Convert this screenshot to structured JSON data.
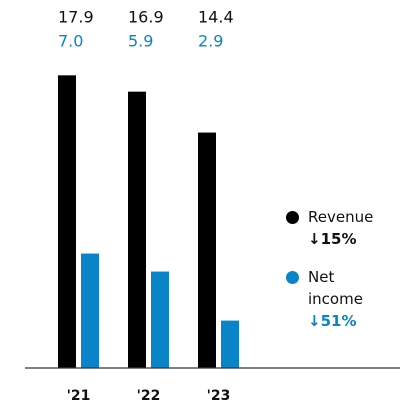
{
  "chart_data": {
    "type": "bar",
    "categories": [
      "'21",
      "'22",
      "'23"
    ],
    "series": [
      {
        "name": "Revenue",
        "color": "#000000",
        "values": [
          17.9,
          16.9,
          14.4
        ],
        "change": "↓15%"
      },
      {
        "name": "Net income",
        "color": "#0a84c8",
        "values": [
          7.0,
          5.9,
          2.9
        ],
        "value_labels": [
          "7.0",
          "5.9",
          "2.9"
        ],
        "change": "↓51%"
      }
    ],
    "ylim": [
      0,
      20
    ]
  }
}
